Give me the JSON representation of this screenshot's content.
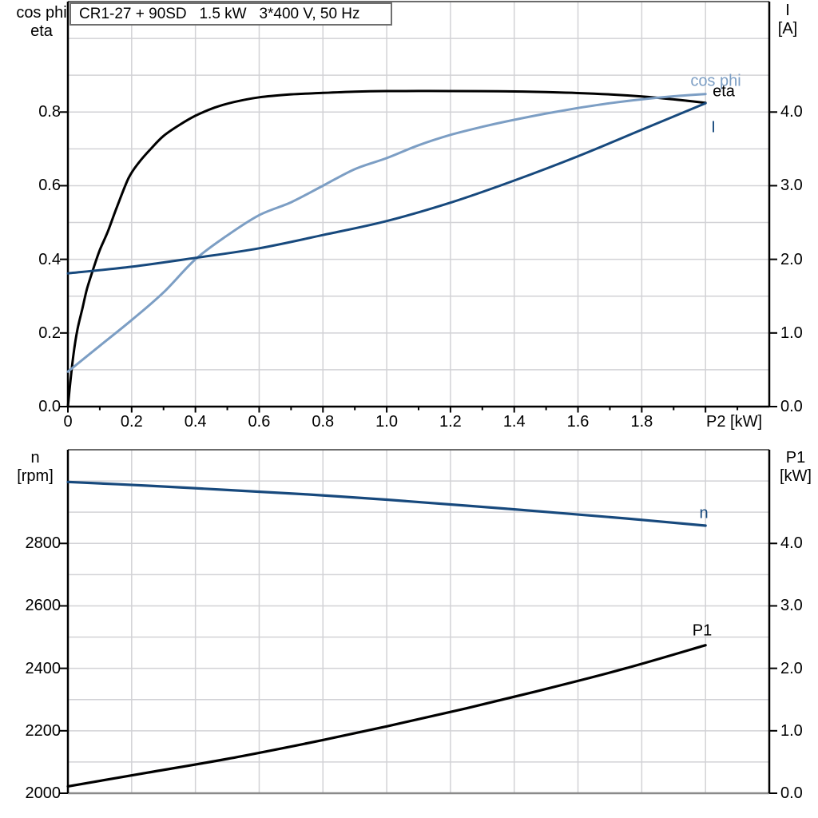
{
  "title_box": {
    "text": "CR1-27 + 90SD   1.5 kW   3*400 V, 50 Hz"
  },
  "headers": {
    "top_left_line1": "cos phi",
    "top_left_line2": "eta",
    "top_right_line1": "I",
    "top_right_line2": "[A]",
    "bottom_left_line1": "n",
    "bottom_left_line2": "[rpm]",
    "bottom_right_line1": "P1",
    "bottom_right_line2": "[kW]"
  },
  "x_axis": {
    "unit_label": "P2 [kW]"
  },
  "curve_labels": {
    "cos_phi": "cos phi",
    "eta": "eta",
    "current": "I",
    "speed": "n",
    "p1": "P1"
  },
  "colors": {
    "black": "#000000",
    "light_blue": "#7C9EC4",
    "dark_blue": "#17497D",
    "grid": "#d2d2d6",
    "border_gray": "#6b6b6b",
    "axis_gray": "#8a8a8a"
  },
  "chart_data": [
    {
      "type": "line",
      "title": "CR1-27 + 90SD   1.5 kW   3*400 V, 50 Hz",
      "xlabel": "P2 [kW]",
      "ylabel_left": "cos phi / eta",
      "ylabel_right": "I [A]",
      "x": {
        "min": 0,
        "max": 2.2,
        "grid_step": 0.2,
        "major_tick_step": 0.2,
        "minor_tick_step": 0.1,
        "tick_values": [
          0,
          0.2,
          0.4,
          0.6,
          0.8,
          1.0,
          1.2,
          1.4,
          1.6,
          1.8
        ],
        "tick_labels": [
          "0",
          "0.2",
          "0.4",
          "0.6",
          "0.8",
          "1.0",
          "1.2",
          "1.4",
          "1.6",
          "1.8"
        ],
        "ticks_visible": true
      },
      "y_left": {
        "min": 0,
        "max": 1.1,
        "grid_step": 0.1,
        "tick_values": [
          0,
          0.2,
          0.4,
          0.6,
          0.8
        ],
        "tick_labels": [
          "0.0",
          "0.2",
          "0.4",
          "0.6",
          "0.8"
        ]
      },
      "y_right": {
        "min": 0,
        "max": 5.5,
        "tick_values": [
          0,
          1,
          2,
          3,
          4
        ],
        "tick_labels": [
          "0.0",
          "1.0",
          "2.0",
          "3.0",
          "4.0"
        ]
      },
      "axis_colors": {
        "left": "#000000",
        "right": "#000000",
        "bottom": "#000000",
        "top_border": "#6b6b6b"
      },
      "series": [
        {
          "name": "eta",
          "axis": "left",
          "color": "#000000",
          "width": 3,
          "points": [
            [
              0,
              0
            ],
            [
              0.008,
              0.07
            ],
            [
              0.018,
              0.145
            ],
            [
              0.03,
              0.21
            ],
            [
              0.045,
              0.265
            ],
            [
              0.06,
              0.32
            ],
            [
              0.08,
              0.375
            ],
            [
              0.1,
              0.425
            ],
            [
              0.125,
              0.475
            ],
            [
              0.155,
              0.545
            ],
            [
              0.19,
              0.62
            ],
            [
              0.22,
              0.66
            ],
            [
              0.26,
              0.7
            ],
            [
              0.3,
              0.735
            ],
            [
              0.35,
              0.765
            ],
            [
              0.4,
              0.79
            ],
            [
              0.46,
              0.812
            ],
            [
              0.52,
              0.827
            ],
            [
              0.6,
              0.84
            ],
            [
              0.7,
              0.848
            ],
            [
              0.8,
              0.852
            ],
            [
              0.9,
              0.8555
            ],
            [
              1.0,
              0.857
            ],
            [
              1.1,
              0.8572
            ],
            [
              1.2,
              0.857
            ],
            [
              1.35,
              0.8565
            ],
            [
              1.5,
              0.8545
            ],
            [
              1.65,
              0.85
            ],
            [
              1.8,
              0.8425
            ],
            [
              1.9,
              0.8345
            ],
            [
              2.0,
              0.825
            ]
          ]
        },
        {
          "name": "cos phi",
          "axis": "left",
          "color": "#7C9EC4",
          "width": 3,
          "points": [
            [
              0,
              0.095
            ],
            [
              0.1,
              0.165
            ],
            [
              0.2,
              0.235
            ],
            [
              0.3,
              0.31
            ],
            [
              0.4,
              0.4
            ],
            [
              0.5,
              0.465
            ],
            [
              0.6,
              0.52
            ],
            [
              0.7,
              0.555
            ],
            [
              0.8,
              0.6
            ],
            [
              0.9,
              0.645
            ],
            [
              1.0,
              0.675
            ],
            [
              1.1,
              0.71
            ],
            [
              1.2,
              0.738
            ],
            [
              1.3,
              0.76
            ],
            [
              1.4,
              0.779
            ],
            [
              1.5,
              0.796
            ],
            [
              1.6,
              0.811
            ],
            [
              1.7,
              0.824
            ],
            [
              1.8,
              0.8345
            ],
            [
              1.9,
              0.843
            ],
            [
              2.0,
              0.849
            ]
          ]
        },
        {
          "name": "I",
          "axis": "right",
          "color": "#17497D",
          "width": 3,
          "points": [
            [
              0,
              1.81
            ],
            [
              0.2,
              1.9
            ],
            [
              0.4,
              2.02
            ],
            [
              0.6,
              2.15
            ],
            [
              0.8,
              2.33
            ],
            [
              1.0,
              2.52
            ],
            [
              1.2,
              2.77
            ],
            [
              1.4,
              3.07
            ],
            [
              1.6,
              3.4
            ],
            [
              1.8,
              3.76
            ],
            [
              2.0,
              4.12
            ]
          ]
        }
      ]
    },
    {
      "type": "line",
      "xlabel": "P2 [kW]",
      "ylabel_left": "n [rpm]",
      "ylabel_right": "P1 [kW]",
      "x": {
        "min": 0,
        "max": 2.2,
        "grid_step": 0.2,
        "ticks_visible": false
      },
      "y_left": {
        "min": 2000,
        "max": 3100,
        "grid_step": 100,
        "tick_values": [
          2000,
          2200,
          2400,
          2600,
          2800
        ],
        "tick_labels": [
          "2000",
          "2200",
          "2400",
          "2600",
          "2800"
        ]
      },
      "y_right": {
        "min": 0,
        "max": 5.5,
        "tick_values": [
          0,
          1,
          2,
          3,
          4
        ],
        "tick_labels": [
          "0.0",
          "1.0",
          "2.0",
          "3.0",
          "4.0"
        ]
      },
      "axis_colors": {
        "left": "#000000",
        "right": "#000000",
        "bottom": "#8a8a8a",
        "top_border": "#6b6b6b"
      },
      "series": [
        {
          "name": "n",
          "axis": "left",
          "color": "#17497D",
          "width": 3.2,
          "points": [
            [
              0,
              2997
            ],
            [
              0.25,
              2985
            ],
            [
              0.5,
              2971
            ],
            [
              0.75,
              2957
            ],
            [
              1.0,
              2940
            ],
            [
              1.25,
              2921
            ],
            [
              1.5,
              2901
            ],
            [
              1.75,
              2880
            ],
            [
              2.0,
              2857
            ]
          ]
        },
        {
          "name": "P1",
          "axis": "right",
          "color": "#000000",
          "width": 3.2,
          "points": [
            [
              0,
              0.11
            ],
            [
              0.25,
              0.33
            ],
            [
              0.5,
              0.55
            ],
            [
              0.75,
              0.8
            ],
            [
              1.0,
              1.07
            ],
            [
              1.25,
              1.36
            ],
            [
              1.5,
              1.67
            ],
            [
              1.75,
              2.0
            ],
            [
              2.0,
              2.37
            ]
          ]
        }
      ]
    }
  ]
}
